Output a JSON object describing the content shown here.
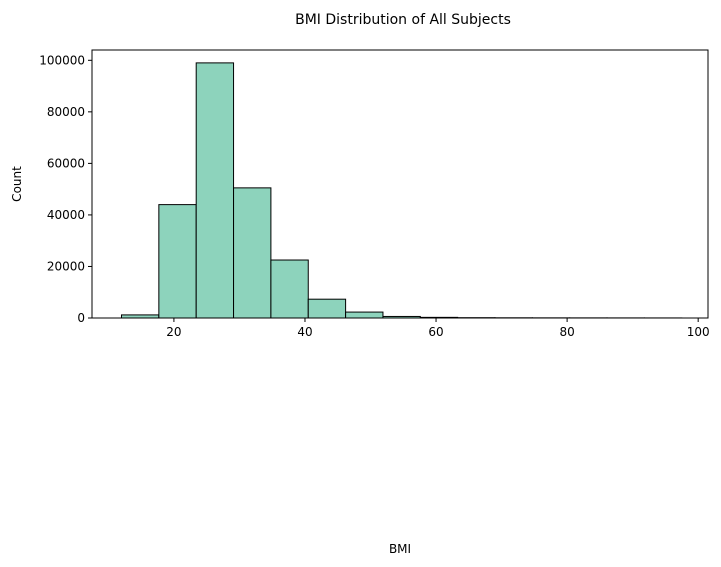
{
  "chart_data": {
    "type": "bar",
    "title": "BMI Distribution of All Subjects",
    "xlabel": "BMI",
    "ylabel": "Count",
    "xlim": [
      7.5,
      101.5
    ],
    "ylim": [
      0,
      104000
    ],
    "x_ticks": [
      20,
      40,
      60,
      80,
      100
    ],
    "y_ticks": [
      0,
      20000,
      40000,
      60000,
      80000,
      100000
    ],
    "bin_edges": [
      12.0,
      17.7,
      23.4,
      29.1,
      34.8,
      40.5,
      46.2,
      51.9,
      57.6,
      63.3,
      69.0,
      74.7,
      80.4,
      86.1,
      91.8,
      97.5
    ],
    "values": [
      1200,
      44000,
      99000,
      50500,
      22500,
      7300,
      2300,
      600,
      250,
      120,
      80,
      60,
      50,
      40,
      30
    ],
    "bar_color": "#8dd3bc",
    "edge_color": "#000000",
    "grid": false
  }
}
